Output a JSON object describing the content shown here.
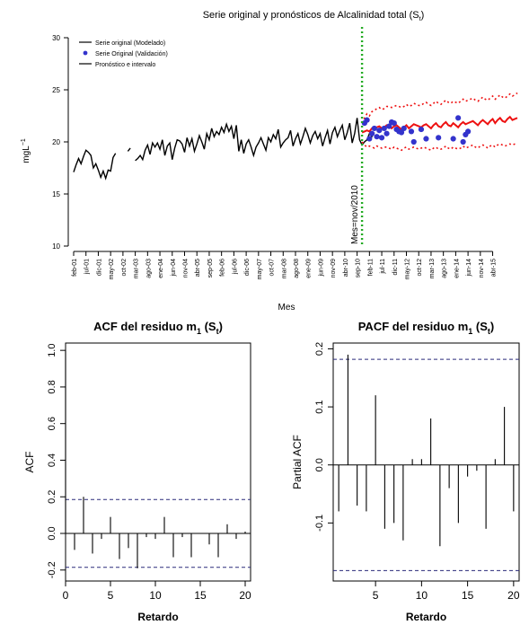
{
  "chart_data": [
    {
      "type": "line",
      "title": "Serie original y pronósticos de Alcalinidad total (S",
      "title_sub": "t",
      "ylabel": "mgL",
      "ylabel_sup": "−1",
      "xlabel": "Mes",
      "ylim": [
        10,
        30
      ],
      "yticks": [
        "10",
        "15",
        "20",
        "25",
        "30"
      ],
      "xlim": [
        0,
        180
      ],
      "xtick_labels": [
        "feb-01",
        "jul-01",
        "dic-01",
        "may-02",
        "oct-02",
        "mar-03",
        "ago-03",
        "ene-04",
        "jun-04",
        "nov-04",
        "abr-05",
        "sep-05",
        "feb-06",
        "jul-06",
        "dic-06",
        "may-07",
        "oct-07",
        "mar-08",
        "ago-08",
        "ene-09",
        "jun-09",
        "nov-09",
        "abr-10",
        "sep-10",
        "feb-11",
        "jul-11",
        "dic-11",
        "may-12",
        "oct-12",
        "mar-13",
        "ago-13",
        "ene-14",
        "jun-14",
        "nov-14",
        "abr-15"
      ],
      "xtick_start": 0,
      "xtick_step": 5,
      "vline_x": 117,
      "vline_label": "Mes=nov/2010",
      "vline_color": "#22aa22",
      "legend": {
        "position": "top-left",
        "entries": [
          "Serie original (Modelado)",
          "Serie Original (Validación)",
          "Pronóstico e intervalo"
        ]
      },
      "series": [
        {
          "name": "Serie original (Modelado)",
          "color": "#000000",
          "start_x": 0,
          "values": [
            17.1,
            17.8,
            18.4,
            17.9,
            18.6,
            19.2,
            19.0,
            18.7,
            17.5,
            17.9,
            17.3,
            16.6,
            17.2,
            16.5,
            17.3,
            17.2,
            18.5,
            18.9,
            null,
            null,
            null,
            null,
            19.1,
            19.4,
            null,
            18.2,
            18.4,
            18.7,
            18.3,
            19.2,
            19.7,
            18.8,
            19.9,
            19.5,
            19.9,
            19.3,
            20.2,
            18.7,
            19.6,
            19.9,
            18.3,
            19.4,
            20.2,
            20.1,
            19.8,
            19.0,
            20.4,
            19.6,
            20.3,
            19.1,
            19.8,
            20.6,
            20.0,
            19.3,
            20.8,
            20.2,
            21.3,
            20.5,
            21.0,
            20.7,
            21.4,
            20.9,
            21.7,
            21.0,
            21.5,
            20.3,
            21.6,
            19.1,
            20.2,
            18.9,
            19.8,
            20.2,
            19.5,
            18.7,
            19.5,
            19.9,
            20.4,
            19.8,
            19.2,
            20.4,
            20.0,
            20.7,
            20.3,
            21.2,
            19.5,
            19.9,
            20.2,
            20.4,
            21.1,
            19.6,
            20.3,
            20.8,
            19.8,
            20.5,
            21.3,
            20.7,
            19.9,
            20.6,
            21.0,
            20.3,
            20.8,
            19.6,
            20.4,
            21.1,
            19.8,
            20.9,
            21.4,
            20.5,
            21.1,
            21.6,
            20.2,
            20.9,
            21.8,
            19.9,
            20.8,
            22.3,
            20.2,
            19.7,
            20.0,
            20.2,
            20.8,
            20.5,
            20.9
          ]
        },
        {
          "name": "Serie Original (Validación)",
          "color": "#3333cc",
          "x": [
            118,
            119,
            120,
            121,
            122,
            123,
            124,
            125,
            126,
            127,
            128,
            129,
            130,
            131,
            132,
            133,
            134,
            137,
            138,
            141,
            143,
            148,
            154,
            156,
            158,
            159,
            160
          ],
          "values": [
            21.8,
            22.1,
            20.3,
            20.8,
            21.3,
            20.5,
            21.1,
            20.4,
            21.3,
            20.8,
            21.5,
            21.9,
            21.8,
            21.2,
            21.0,
            20.9,
            21.3,
            21.0,
            20.0,
            21.2,
            20.3,
            20.4,
            20.3,
            22.3,
            20.0,
            20.7,
            21.0
          ]
        },
        {
          "name": "Pronóstico e intervalo",
          "color": "#ee1111",
          "start_x": 117,
          "values": [
            20.9,
            21.0,
            21.1,
            21.0,
            21.3,
            21.2,
            21.4,
            21.5,
            21.3,
            21.4,
            21.6,
            21.5,
            21.3,
            21.5,
            21.6,
            21.4,
            21.2,
            21.4,
            21.6,
            21.3,
            21.5,
            21.7,
            21.6,
            21.5,
            21.4,
            21.6,
            21.7,
            21.5,
            21.3,
            21.6,
            21.8,
            21.5,
            21.4,
            21.7,
            21.9,
            21.6,
            21.5,
            21.8,
            21.6,
            21.4,
            21.7,
            21.9,
            21.7,
            21.8,
            21.9,
            22.0,
            21.8,
            21.6,
            21.9,
            22.1,
            21.9,
            21.7,
            22.0,
            22.2,
            21.8,
            22.1,
            22.3,
            22.0,
            21.9,
            22.2,
            22.4,
            22.1,
            22.2,
            22.3
          ],
          "lower": [
            20.0,
            19.7,
            19.5,
            19.6,
            19.5,
            19.4,
            19.6,
            19.5,
            19.4,
            19.5,
            19.5,
            19.4,
            19.3,
            19.5,
            19.4,
            19.3,
            19.2,
            19.4,
            19.5,
            19.3,
            19.4,
            19.5,
            19.4,
            19.3,
            19.4,
            19.5,
            19.4,
            19.3,
            19.2,
            19.4,
            19.5,
            19.3,
            19.3,
            19.4,
            19.6,
            19.4,
            19.3,
            19.5,
            19.4,
            19.3,
            19.4,
            19.6,
            19.4,
            19.5,
            19.6,
            19.7,
            19.5,
            19.4,
            19.6,
            19.7,
            19.6,
            19.4,
            19.6,
            19.7,
            19.5,
            19.7,
            19.8,
            19.7,
            19.6,
            19.7,
            19.8,
            19.7,
            19.8,
            19.9
          ],
          "upper": [
            21.8,
            22.3,
            22.7,
            22.5,
            22.9,
            23.0,
            23.2,
            23.3,
            23.1,
            23.2,
            23.4,
            23.4,
            23.3,
            23.4,
            23.5,
            23.4,
            23.3,
            23.4,
            23.6,
            23.4,
            23.5,
            23.7,
            23.6,
            23.5,
            23.5,
            23.7,
            23.8,
            23.6,
            23.5,
            23.7,
            23.9,
            23.7,
            23.6,
            23.8,
            24.0,
            23.8,
            23.7,
            23.9,
            23.8,
            23.7,
            23.9,
            24.1,
            23.9,
            24.0,
            24.1,
            24.2,
            24.0,
            23.9,
            24.1,
            24.3,
            24.1,
            24.0,
            24.2,
            24.4,
            24.1,
            24.3,
            24.5,
            24.3,
            24.2,
            24.4,
            24.6,
            24.4,
            24.5,
            24.7
          ]
        }
      ]
    },
    {
      "type": "bar",
      "title": "ACF del residuo m",
      "title_sub1": "1",
      "title_paren": " (S",
      "title_sub2": "t",
      "title_close": ")",
      "ylabel": "ACF",
      "xlabel": "Retardo",
      "xlim": [
        0,
        20.6
      ],
      "ylim": [
        -0.26,
        1.04
      ],
      "xticks": [
        "0",
        "5",
        "10",
        "15",
        "20"
      ],
      "yticks": [
        "-0.2",
        "0.0",
        "0.2",
        "0.4",
        "0.6",
        "0.8",
        "1.0"
      ],
      "conf_band": 0.185,
      "lags": [
        0,
        1,
        2,
        3,
        4,
        5,
        6,
        7,
        8,
        9,
        10,
        11,
        12,
        13,
        14,
        15,
        16,
        17,
        18,
        19,
        20
      ],
      "values": [
        1.0,
        -0.09,
        0.2,
        -0.11,
        -0.03,
        0.09,
        -0.14,
        -0.08,
        -0.19,
        -0.02,
        -0.03,
        0.09,
        -0.13,
        -0.02,
        -0.13,
        0.0,
        -0.06,
        -0.13,
        0.05,
        -0.03,
        0.01
      ]
    },
    {
      "type": "bar",
      "title": "PACF del residuo m",
      "title_sub1": "1",
      "title_paren": " (S",
      "title_sub2": "t",
      "title_close": ")",
      "ylabel": "Partial ACF",
      "xlabel": "Retardo",
      "xlim": [
        0.4,
        20.6
      ],
      "ylim": [
        -0.2,
        0.21
      ],
      "xticks": [
        "5",
        "10",
        "15",
        "20"
      ],
      "yticks": [
        "-0.1",
        "0.0",
        "0.1",
        "0.2"
      ],
      "conf_band": 0.182,
      "lags": [
        1,
        2,
        3,
        4,
        5,
        6,
        7,
        8,
        9,
        10,
        11,
        12,
        13,
        14,
        15,
        16,
        17,
        18,
        19,
        20
      ],
      "values": [
        -0.08,
        0.19,
        -0.07,
        -0.08,
        0.12,
        -0.11,
        -0.1,
        -0.13,
        0.01,
        0.01,
        0.08,
        -0.14,
        -0.04,
        -0.1,
        -0.02,
        -0.01,
        -0.11,
        0.01,
        0.1,
        -0.08
      ]
    }
  ]
}
